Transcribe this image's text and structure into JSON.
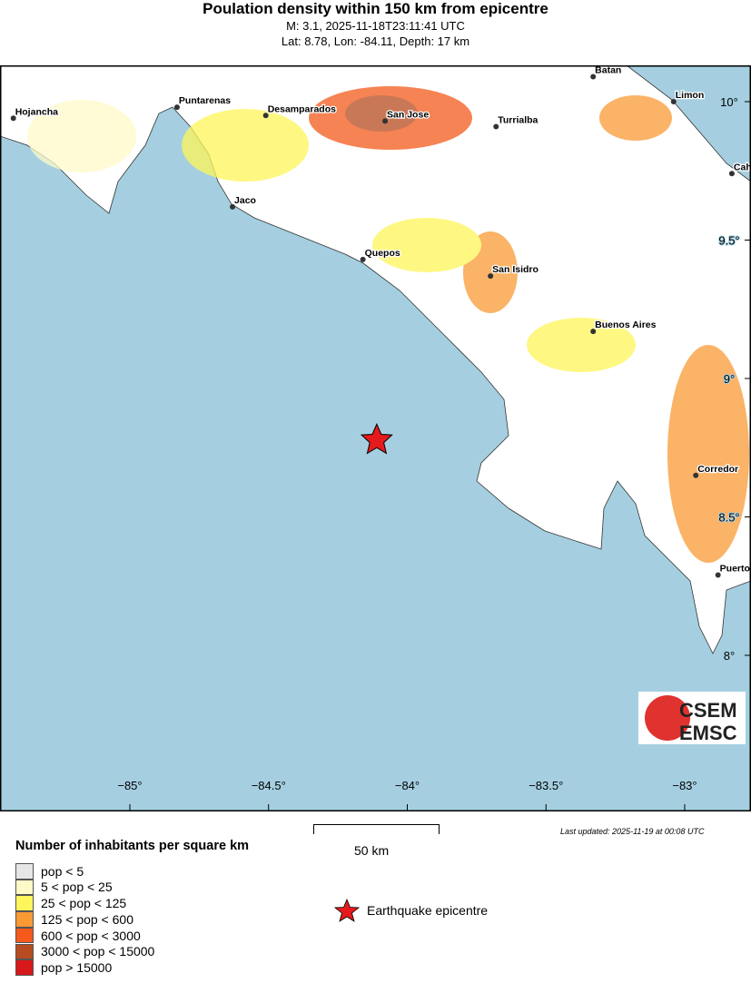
{
  "header": {
    "title": "Poulation density within 150 km from epicentre",
    "line1": "M: 3.1,  2025-11-18T23:11:41 UTC",
    "line2": "Lat: 8.78, Lon: -84.11, Depth: 17 km"
  },
  "epicentre": {
    "lat": 8.78,
    "lon": -84.11,
    "depth_km": 17,
    "color": "#e41a1c"
  },
  "map": {
    "sea_color": "#a5cfe0",
    "land_color": "#ffffff",
    "lon_ticks": [
      "−85°",
      "−84.5°",
      "−84°",
      "−83.5°",
      "−83°"
    ],
    "lat_ticks": [
      "10°",
      "9.5°",
      "9°",
      "8.5°",
      "8°"
    ],
    "cities": [
      {
        "name": "Hojancha",
        "lon": -85.42,
        "lat": 9.94
      },
      {
        "name": "Puntarenas",
        "lon": -84.83,
        "lat": 9.98
      },
      {
        "name": "Desamparados",
        "lon": -84.51,
        "lat": 9.95
      },
      {
        "name": "San Jose",
        "lon": -84.08,
        "lat": 9.93
      },
      {
        "name": "Turrialba",
        "lon": -83.68,
        "lat": 9.91
      },
      {
        "name": "Batan",
        "lon": -83.33,
        "lat": 10.09
      },
      {
        "name": "Limon",
        "lon": -83.04,
        "lat": 10.0
      },
      {
        "name": "Cah",
        "lon": -82.83,
        "lat": 9.74
      },
      {
        "name": "Jaco",
        "lon": -84.63,
        "lat": 9.62
      },
      {
        "name": "Quepos",
        "lon": -84.16,
        "lat": 9.43
      },
      {
        "name": "San Isidro",
        "lon": -83.7,
        "lat": 9.37
      },
      {
        "name": "Buenos Aires",
        "lon": -83.33,
        "lat": 9.17
      },
      {
        "name": "Corredor",
        "lon": -82.96,
        "lat": 8.65
      },
      {
        "name": "Puerto",
        "lon": -82.88,
        "lat": 8.29
      }
    ],
    "logo": {
      "text1": "CSEM",
      "text2": "EMSC"
    }
  },
  "scale": {
    "label": "50 km"
  },
  "updated": "Last updated: 2025-11-19 at 00:08 UTC",
  "legend": {
    "title": "Number of inhabitants per square km",
    "items": [
      {
        "label": "pop < 5",
        "color": "#e6e6e6"
      },
      {
        "label": "5 < pop < 25",
        "color": "#fefac8"
      },
      {
        "label": "25 < pop < 125",
        "color": "#fef65a"
      },
      {
        "label": "125 < pop < 600",
        "color": "#f99a35"
      },
      {
        "label": "600 < pop < 3000",
        "color": "#f35a1c"
      },
      {
        "label": "3000 < pop < 15000",
        "color": "#b64c1f"
      },
      {
        "label": "pop > 15000",
        "color": "#d7191c"
      }
    ],
    "epicentre_label": "Earthquake epicentre"
  }
}
